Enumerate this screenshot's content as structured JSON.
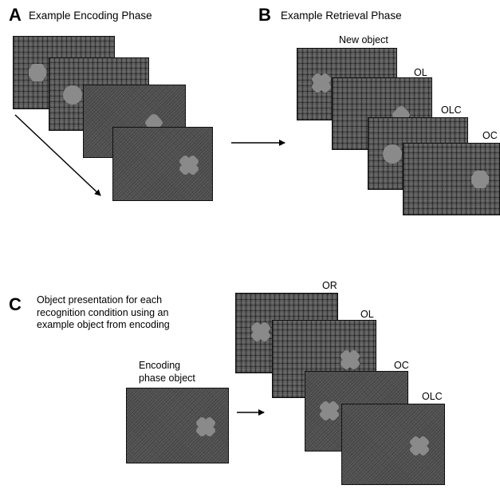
{
  "panel_a": {
    "letter": "A",
    "title": "Example Encoding Phase"
  },
  "panel_b": {
    "letter": "B",
    "title": "Example Retrieval Phase",
    "labels": [
      "New object",
      "OL",
      "OLC",
      "OC"
    ]
  },
  "panel_c": {
    "letter": "C",
    "title": "Object presentation for each\nrecognition condition using an\nexample object from encoding",
    "encoding_label": "Encoding\nphase object",
    "labels": [
      "OR",
      "OL",
      "OC",
      "OLC"
    ]
  },
  "object_icons": [
    "blob-object-icon",
    "circle-object-icon",
    "rounded-diamond-object-icon",
    "four-lobed-object-icon"
  ]
}
